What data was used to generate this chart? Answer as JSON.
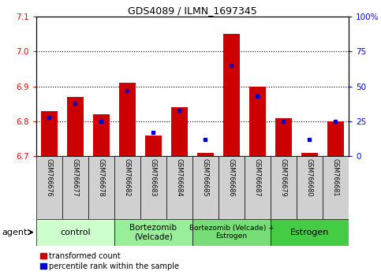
{
  "title": "GDS4089 / ILMN_1697345",
  "samples": [
    "GSM766676",
    "GSM766677",
    "GSM766678",
    "GSM766682",
    "GSM766683",
    "GSM766684",
    "GSM766685",
    "GSM766686",
    "GSM766687",
    "GSM766679",
    "GSM766680",
    "GSM766681"
  ],
  "red_values": [
    6.83,
    6.87,
    6.82,
    6.91,
    6.76,
    6.84,
    6.71,
    7.05,
    6.9,
    6.81,
    6.71,
    6.8
  ],
  "blue_percentiles": [
    28,
    38,
    25,
    47,
    17,
    33,
    12,
    65,
    43,
    25,
    12,
    25
  ],
  "y_min": 6.7,
  "y_max": 7.1,
  "y_ticks": [
    6.7,
    6.8,
    6.9,
    7.0,
    7.1
  ],
  "right_y_ticks": [
    0,
    25,
    50,
    75,
    100
  ],
  "right_y_labels": [
    "0",
    "25",
    "50",
    "75",
    "100%"
  ],
  "group_colors": [
    "#ccffcc",
    "#99ee99",
    "#77dd77",
    "#44cc44"
  ],
  "group_labels": [
    "control",
    "Bortezomib\n(Velcade)",
    "Bortezomib (Velcade) +\nEstrogen",
    "Estrogen"
  ],
  "group_starts": [
    0,
    3,
    6,
    9
  ],
  "group_ends": [
    3,
    6,
    9,
    12
  ],
  "group_fontsizes": [
    8,
    7.5,
    6.5,
    8
  ],
  "bar_color": "#cc0000",
  "blue_color": "#0000cc",
  "bar_base": 6.7,
  "legend_red": "transformed count",
  "legend_blue": "percentile rank within the sample",
  "agent_label": "agent"
}
